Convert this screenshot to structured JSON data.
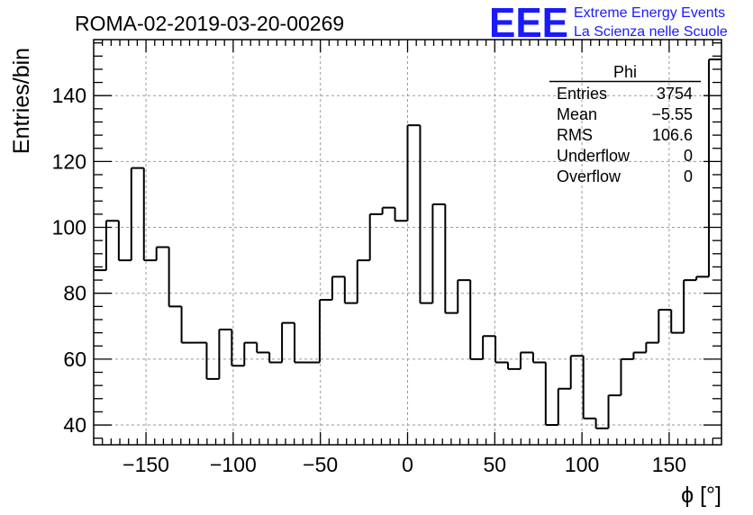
{
  "chart_data": {
    "type": "histogram",
    "title": "ROMA-02-2019-03-20-00269",
    "xlabel": "ϕ [°]",
    "ylabel": "Entries/bin",
    "xlim": [
      -180,
      180
    ],
    "ylim": [
      34,
      157
    ],
    "grid": true,
    "bin_width": 7.2,
    "values": [
      87,
      102,
      90,
      118,
      90,
      94,
      76,
      65,
      65,
      54,
      69,
      58,
      65,
      62,
      59,
      71,
      59,
      59,
      78,
      85,
      77,
      90,
      104,
      106,
      102,
      131,
      77,
      107,
      74,
      84,
      60,
      67,
      59,
      57,
      62,
      59,
      40,
      51,
      61,
      42,
      39,
      49,
      60,
      62,
      65,
      75,
      68,
      84,
      85,
      151
    ],
    "x_ticks": [
      -150,
      -100,
      -50,
      0,
      50,
      100,
      150
    ],
    "x_tick_labels": [
      "−150",
      "−100",
      "−50",
      "0",
      "50",
      "100",
      "150"
    ],
    "y_ticks": [
      40,
      60,
      80,
      100,
      120,
      140
    ],
    "y_tick_labels": [
      "40",
      "60",
      "80",
      "100",
      "120",
      "140"
    ],
    "stats_box": {
      "name": "Phi",
      "rows": [
        {
          "label": "Entries",
          "value": "3754"
        },
        {
          "label": "Mean",
          "value": "−5.55"
        },
        {
          "label": "RMS",
          "value": "106.6"
        },
        {
          "label": "Underflow",
          "value": "0"
        },
        {
          "label": "Overflow",
          "value": "0"
        }
      ]
    }
  },
  "logo": {
    "mark": "EEE",
    "line1": "Extreme Energy Events",
    "line2": "La Scienza nelle Scuole",
    "color": "#1a1aff"
  }
}
